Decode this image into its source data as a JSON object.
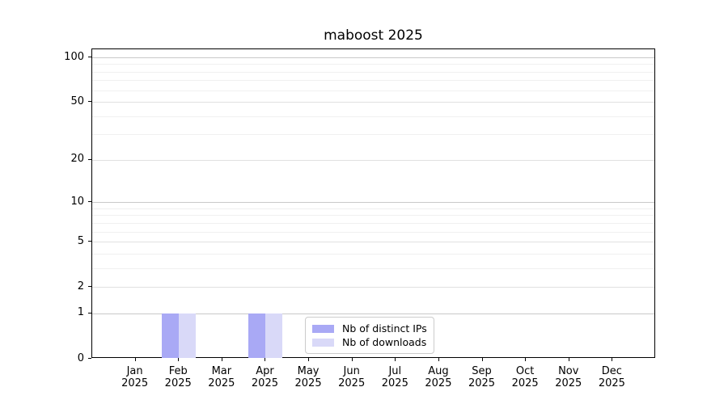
{
  "chart_data": {
    "type": "bar",
    "title": "maboost 2025",
    "categories": [
      "Jan 2025",
      "Feb 2025",
      "Mar 2025",
      "Apr 2025",
      "May 2025",
      "Jun 2025",
      "Jul 2025",
      "Aug 2025",
      "Sep 2025",
      "Oct 2025",
      "Nov 2025",
      "Dec 2025"
    ],
    "series": [
      {
        "name": "Nb of distinct IPs",
        "color": "#a9a9f5",
        "values": [
          0,
          1,
          0,
          1,
          0,
          0,
          0,
          0,
          0,
          0,
          0,
          0
        ]
      },
      {
        "name": "Nb of downloads",
        "color": "#d9d9f8",
        "values": [
          0,
          1,
          0,
          1,
          0,
          0,
          0,
          0,
          0,
          0,
          0,
          0
        ]
      }
    ],
    "xlabel": "",
    "ylabel": "",
    "yscale": "log1p",
    "ylim": [
      0,
      113
    ],
    "yticks": [
      0,
      1,
      2,
      5,
      10,
      20,
      50,
      100
    ],
    "minor_yticks": [
      3,
      4,
      6,
      7,
      8,
      9,
      30,
      40,
      60,
      70,
      80,
      90
    ],
    "grid": "horizontal",
    "legend_position": "lower-center-inside"
  },
  "colors": {
    "decade_gridline": "#c9c9c9",
    "labeled_gridline": "#e1e1e1",
    "minor_gridline": "#f0f0f0",
    "axis": "#000000",
    "legend_border": "#cccccc",
    "background": "#ffffff"
  }
}
